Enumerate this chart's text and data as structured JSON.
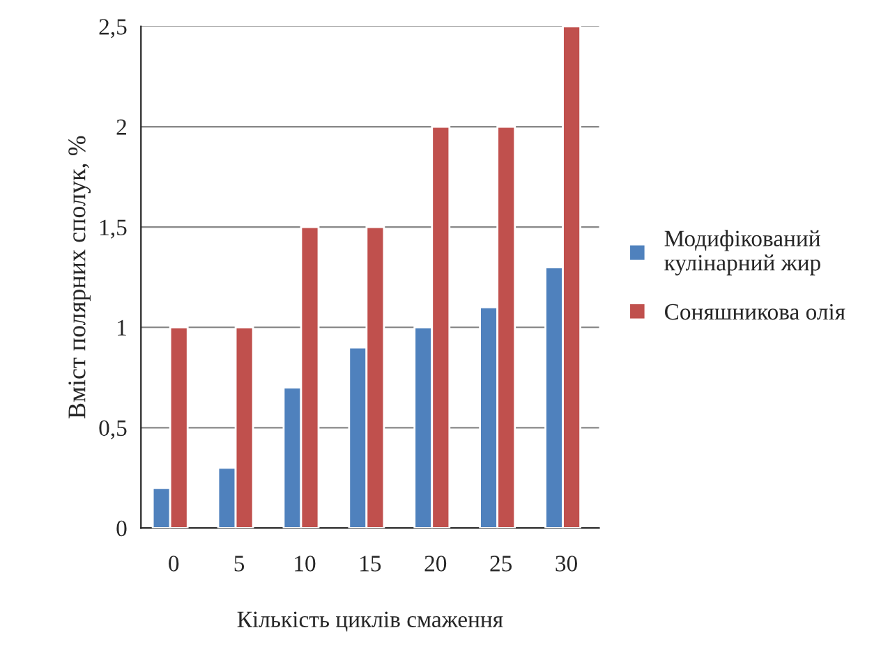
{
  "chart_data": {
    "type": "bar",
    "xlabel": "Кількість циклів смаження",
    "ylabel": "Вміст полярних сполук, %",
    "categories": [
      "0",
      "5",
      "10",
      "15",
      "20",
      "25",
      "30"
    ],
    "series": [
      {
        "name": "Модифікований\nкулінарний жир",
        "color": "#4f81bd",
        "values": [
          0.2,
          0.3,
          0.7,
          0.9,
          1.0,
          1.1,
          1.3
        ]
      },
      {
        "name": "Соняшникова олія",
        "color": "#c0504d",
        "values": [
          1.0,
          1.0,
          1.5,
          1.5,
          2.0,
          2.0,
          2.5
        ]
      }
    ],
    "ylim": [
      0,
      2.5
    ],
    "yticks": [
      0,
      {
        "value": 0.5,
        "label": "0,5"
      },
      1,
      {
        "value": 1.5,
        "label": "1,5"
      },
      2,
      {
        "value": 2.5,
        "label": "2,5"
      }
    ],
    "grid": "y",
    "legend": "right"
  }
}
